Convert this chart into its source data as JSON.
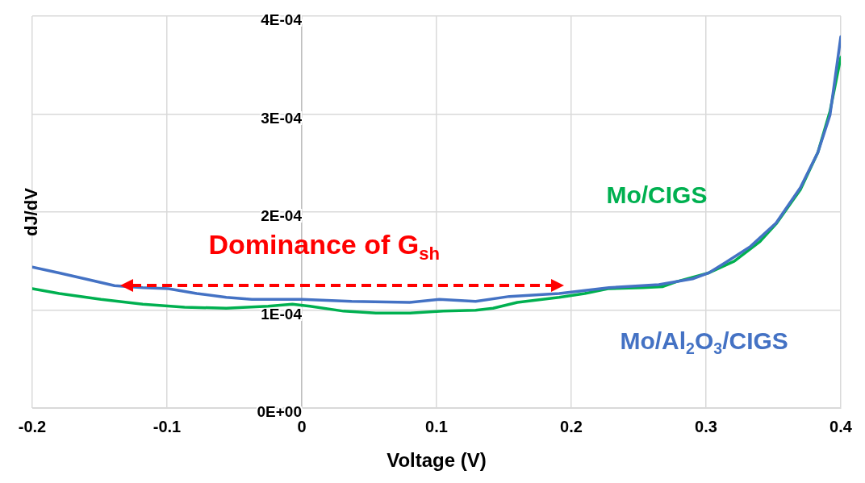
{
  "chart_data": {
    "type": "line",
    "xlabel": "Voltage (V)",
    "ylabel": "dJ/dV",
    "xlim": [
      -0.2,
      0.4
    ],
    "xticks": [
      -0.2,
      -0.1,
      0,
      0.1,
      0.2,
      0.3,
      0.4
    ],
    "ylim": [
      0,
      0.0004
    ],
    "yticks": [
      {
        "value": 0,
        "label": "0E+00"
      },
      {
        "value": 0.0001,
        "label": "1E-04"
      },
      {
        "value": 0.0002,
        "label": "2E-04"
      },
      {
        "value": 0.0003,
        "label": "3E-04"
      },
      {
        "value": 0.0004,
        "label": "4E-04"
      }
    ],
    "grid": true,
    "marker": "none",
    "line_style": "solid",
    "series": [
      {
        "name": "Mo/Al$_{2}$O$_{3}$/CIGS",
        "color": "#4472c4",
        "x": [
          -0.2,
          -0.18,
          -0.161,
          -0.139,
          -0.118,
          -0.099,
          -0.078,
          -0.056,
          -0.037,
          0,
          0.037,
          0.08,
          0.102,
          0.129,
          0.154,
          0.191,
          0.228,
          0.265,
          0.29,
          0.302,
          0.315,
          0.333,
          0.352,
          0.37,
          0.383,
          0.392,
          0.4
        ],
        "values": [
          0.000144,
          0.000138,
          0.000132,
          0.000125,
          0.000123,
          0.000122,
          0.000117,
          0.000113,
          0.000111,
          0.000111,
          0.000109,
          0.000108,
          0.000111,
          0.000109,
          0.000114,
          0.000117,
          0.000123,
          0.000126,
          0.000132,
          0.000138,
          0.000149,
          0.000165,
          0.000189,
          0.000225,
          0.000261,
          0.000299,
          0.000379
        ]
      },
      {
        "name": "Mo/CIGS",
        "color": "#00b050",
        "x": [
          -0.2,
          -0.18,
          -0.149,
          -0.118,
          -0.087,
          -0.056,
          -0.025,
          -0.007,
          0.006,
          0.031,
          0.055,
          0.08,
          0.105,
          0.129,
          0.142,
          0.16,
          0.191,
          0.21,
          0.228,
          0.253,
          0.268,
          0.278,
          0.302,
          0.321,
          0.34,
          0.352,
          0.37,
          0.383,
          0.392,
          0.4
        ],
        "values": [
          0.000122,
          0.000117,
          0.000111,
          0.000106,
          0.000103,
          0.000102,
          0.000104,
          0.000106,
          0.000104,
          9.9e-05,
          9.7e-05,
          9.7e-05,
          9.9e-05,
          0.0001,
          0.000102,
          0.000108,
          0.000113,
          0.000117,
          0.000122,
          0.000123,
          0.000124,
          0.000129,
          0.000138,
          0.00015,
          0.00017,
          0.000188,
          0.000223,
          0.000261,
          0.000303,
          0.000358
        ]
      }
    ],
    "annotations": [
      "Dominance of G$_{sh}$"
    ]
  }
}
